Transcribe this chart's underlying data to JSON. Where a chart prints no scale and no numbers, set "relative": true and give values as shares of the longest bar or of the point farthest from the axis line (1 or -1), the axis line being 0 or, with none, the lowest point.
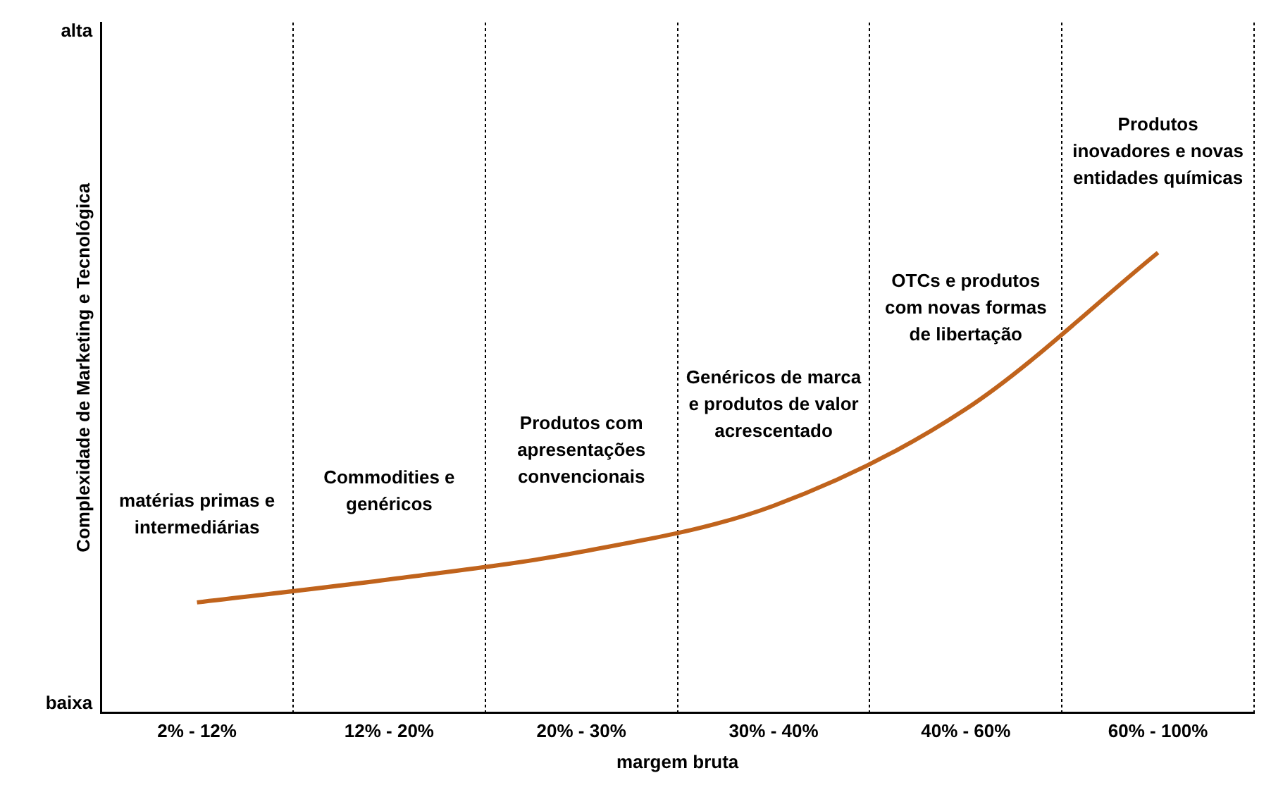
{
  "chart_data": {
    "type": "line",
    "relative": true,
    "ylabel": "Complexidade de Marketing e Tecnológica",
    "xlabel": "margem bruta",
    "categories": [
      "2% - 12%",
      "12% - 20%",
      "20% - 30%",
      "30% - 40%",
      "40% - 60%",
      "60% - 100%"
    ],
    "series": [
      {
        "color": "#c0631c",
        "values": [
          0.24,
          0.29,
          0.35,
          0.45,
          0.66,
          1
        ]
      }
    ],
    "grid": "x",
    "legend": false,
    "marker": "none",
    "line_style": "solid",
    "annotations": [
      "alta",
      "baixa",
      "matérias primas e intermediárias",
      "Commodities e genéricos",
      "Produtos com apresentações convencionais",
      "Genéricos de marca e produtos de valor acrescentado",
      "OTCs e produtos com novas formas de libertação",
      "Produtos inovadores e novas entidades químicas"
    ]
  }
}
